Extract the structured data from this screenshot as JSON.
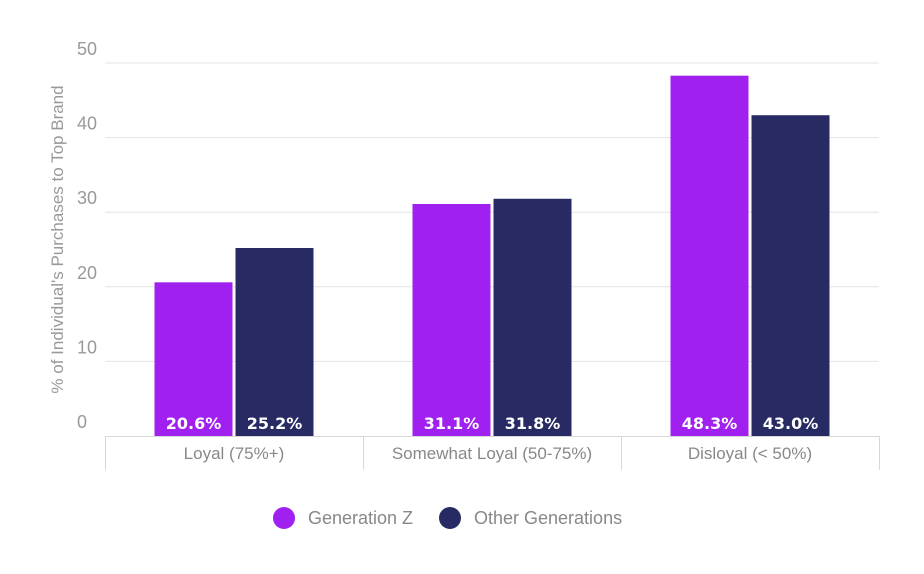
{
  "chart_data": {
    "type": "bar",
    "ylabel": "% of Individual's Purchases to Top Brand",
    "xlabel": "",
    "ylim": [
      0,
      50
    ],
    "yticks": [
      0,
      10,
      20,
      30,
      40,
      50
    ],
    "grid": true,
    "legend_position": "bottom-center",
    "categories": [
      "Loyal (75%+)",
      "Somewhat Loyal (50-75%)",
      "Disloyal (< 50%)"
    ],
    "series": [
      {
        "name": "Generation Z",
        "color": "#a020f0",
        "values": [
          20.6,
          31.1,
          48.3
        ],
        "labels": [
          "20.6%",
          "31.1%",
          "48.3%"
        ]
      },
      {
        "name": "Other Generations",
        "color": "#272a63",
        "values": [
          25.2,
          31.8,
          43.0
        ],
        "labels": [
          "25.2%",
          "31.8%",
          "43.0%"
        ]
      }
    ]
  }
}
